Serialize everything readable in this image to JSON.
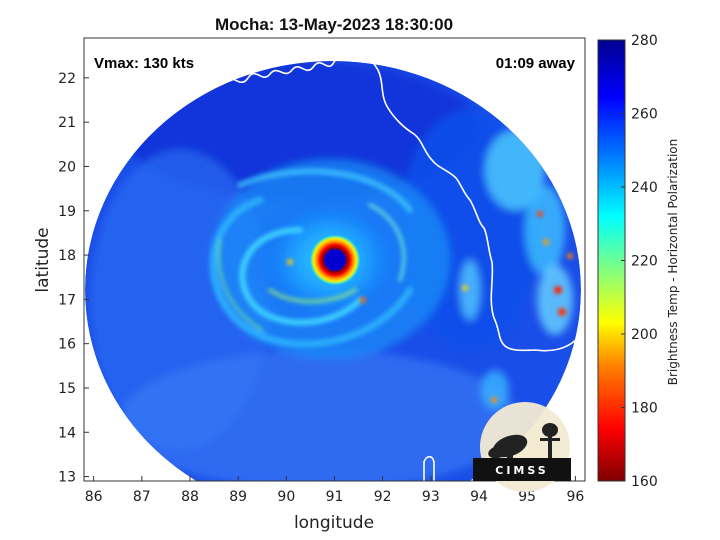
{
  "chart_data": {
    "type": "heatmap",
    "title": "Mocha: 13-May-2023 18:30:00",
    "xlabel": "longitude",
    "ylabel": "latitude",
    "xlim": [
      85.8,
      96.2
    ],
    "ylim": [
      12.9,
      22.9
    ],
    "x_ticks": [
      86,
      87,
      88,
      89,
      90,
      91,
      92,
      93,
      94,
      95,
      96
    ],
    "y_ticks": [
      13,
      14,
      15,
      16,
      17,
      18,
      19,
      20,
      21,
      22
    ],
    "grid": false,
    "colorbar": {
      "label": "Brightness Temp - Horizontal Polarization",
      "range": [
        160,
        280
      ],
      "ticks": [
        160,
        180,
        200,
        220,
        240,
        260,
        280
      ],
      "colormap": [
        "#7f0000",
        "#ff0000",
        "#ffa500",
        "#ffff00",
        "#80ff80",
        "#00ffff",
        "#0080ff",
        "#0000ff",
        "#00008f"
      ]
    },
    "storm_center": {
      "lon": 90.9,
      "lat": 17.9,
      "eye_brightness_temp": 265,
      "eyewall_brightness_temp": 170
    },
    "annotations": {
      "vmax": "Vmax: 130 kts",
      "time_offset": "01:09 away"
    },
    "logo": "CIMSS"
  }
}
